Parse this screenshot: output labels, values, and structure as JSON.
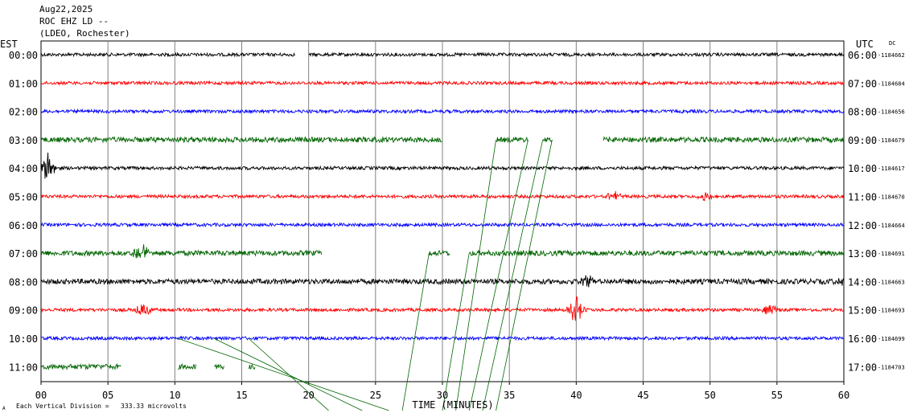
{
  "header": {
    "date": "Aug22,2025",
    "station": "ROC EHZ LD --",
    "network": "(LDEO, Rochester)"
  },
  "left_axis_label": "EST",
  "right_axis_label": "UTC",
  "dc_label": "DC",
  "footer": {
    "scale_note": "Each Vertical Division = ",
    "scale_value": "333.33 microvolts",
    "corner_mark": "A"
  },
  "colors": {
    "black": "#000000",
    "red": "#ff0000",
    "blue": "#0000ff",
    "green": "#006400",
    "grid": "#808080"
  },
  "chart_data": {
    "type": "line",
    "title": "",
    "xlabel": "TIME (MINUTES)",
    "xlim": [
      0,
      60
    ],
    "x_ticks": [
      "00",
      "05",
      "10",
      "15",
      "20",
      "25",
      "30",
      "35",
      "40",
      "45",
      "50",
      "55",
      "60"
    ],
    "grid": true,
    "rows": [
      {
        "est": "00:00",
        "utc": "06:00",
        "dc": "-1184662",
        "color": "black",
        "gaps": [
          [
            19.0,
            20.0
          ]
        ],
        "events": []
      },
      {
        "est": "01:00",
        "utc": "07:00",
        "dc": "-1184684",
        "color": "red",
        "gaps": [],
        "events": []
      },
      {
        "est": "02:00",
        "utc": "08:00",
        "dc": "-1184656",
        "color": "blue",
        "gaps": [],
        "events": []
      },
      {
        "est": "03:00",
        "utc": "09:00",
        "dc": "-1184679",
        "color": "green",
        "gaps": [
          [
            30.0,
            34.0
          ],
          [
            36.4,
            37.5
          ],
          [
            38.2,
            42.0
          ]
        ],
        "events": []
      },
      {
        "est": "04:00",
        "utc": "10:00",
        "dc": "-1184617",
        "color": "black",
        "gaps": [],
        "events": [
          {
            "t": 0.5,
            "amp": 6
          }
        ]
      },
      {
        "est": "05:00",
        "utc": "11:00",
        "dc": "-1184670",
        "color": "red",
        "gaps": [],
        "events": [
          {
            "t": 42.8,
            "amp": 2
          },
          {
            "t": 49.6,
            "amp": 2
          }
        ]
      },
      {
        "est": "06:00",
        "utc": "12:00",
        "dc": "-1184664",
        "color": "blue",
        "gaps": [],
        "events": []
      },
      {
        "est": "07:00",
        "utc": "13:00",
        "dc": "-1184691",
        "color": "green",
        "gaps": [
          [
            21.0,
            29.0
          ],
          [
            30.6,
            32.0
          ]
        ],
        "events": [
          {
            "t": 7.5,
            "amp": 4
          }
        ]
      },
      {
        "est": "08:00",
        "utc": "14:00",
        "dc": "-1184663",
        "color": "black",
        "gaps": [],
        "events": [
          {
            "t": 40.8,
            "amp": 3
          },
          {
            "t": 59.8,
            "amp": 2
          }
        ]
      },
      {
        "est": "09:00",
        "utc": "15:00",
        "dc": "-1184693",
        "color": "red",
        "gaps": [],
        "events": [
          {
            "t": 7.6,
            "amp": 3
          },
          {
            "t": 40.0,
            "amp": 6
          },
          {
            "t": 54.5,
            "amp": 2
          }
        ]
      },
      {
        "est": "10:00",
        "utc": "16:00",
        "dc": "-1184699",
        "color": "blue",
        "gaps": [],
        "events": []
      },
      {
        "est": "11:00",
        "utc": "17:00",
        "dc": "-1184703",
        "color": "green",
        "gaps": [
          [
            6.0,
            10.2
          ],
          [
            11.6,
            12.9
          ],
          [
            13.7,
            15.5
          ],
          [
            16.0,
            60.0
          ]
        ],
        "events": []
      }
    ]
  }
}
